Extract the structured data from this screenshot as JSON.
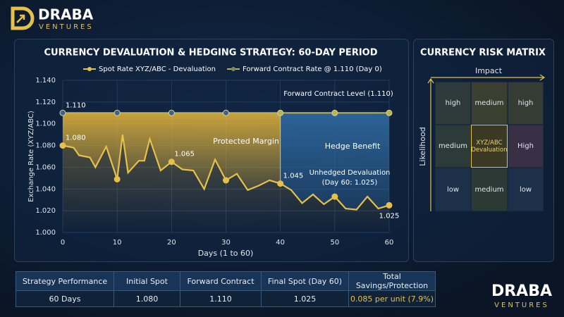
{
  "logo": {
    "name": "DRABA",
    "tagline": "VENTURES"
  },
  "chart_data": {
    "type": "line",
    "title": "CURRENCY DEVALUATION & HEDGING STRATEGY: 60-DAY PERIOD",
    "x_label": "Days (1 to 60)",
    "y_label": "Exchange Rate (XYZ/ABC)",
    "xlim": [
      0,
      60
    ],
    "xticks": [
      0,
      10,
      20,
      30,
      40,
      50,
      60
    ],
    "ylim": [
      1.0,
      1.14
    ],
    "yticks": [
      {
        "value": 1.0,
        "label": "1.000"
      },
      {
        "value": 1.02,
        "label": "1.020"
      },
      {
        "value": 1.04,
        "label": "1.040"
      },
      {
        "value": 1.06,
        "label": "1.060"
      },
      {
        "value": 1.08,
        "label": "1.080"
      },
      {
        "value": 1.1,
        "label": "1.100"
      },
      {
        "value": 1.12,
        "label": "1.120"
      },
      {
        "value": 1.14,
        "label": "1.140"
      }
    ],
    "grid": true,
    "legend": "top",
    "series": [
      {
        "name": "Spot Rate XYZ/ABC - Devaluation",
        "color": "#e6c14a",
        "x": [
          0,
          2,
          3,
          5,
          6,
          8,
          10,
          11,
          12,
          14,
          15,
          16,
          18,
          20,
          22,
          24,
          26,
          28,
          30,
          32,
          34,
          36,
          38,
          40,
          42,
          44,
          46,
          48,
          50,
          52,
          54,
          56,
          58,
          60
        ],
        "values": [
          1.08,
          1.078,
          1.071,
          1.069,
          1.06,
          1.079,
          1.049,
          1.09,
          1.055,
          1.066,
          1.066,
          1.086,
          1.057,
          1.065,
          1.058,
          1.057,
          1.04,
          1.067,
          1.048,
          1.054,
          1.039,
          1.043,
          1.048,
          1.045,
          1.039,
          1.027,
          1.035,
          1.026,
          1.033,
          1.022,
          1.021,
          1.033,
          1.022,
          1.025
        ],
        "value_labels": [
          "1.080",
          null,
          null,
          null,
          null,
          null,
          null,
          null,
          null,
          null,
          null,
          null,
          null,
          "1.065",
          null,
          null,
          null,
          null,
          null,
          null,
          null,
          null,
          null,
          "1.045",
          null,
          null,
          null,
          null,
          null,
          null,
          null,
          null,
          null,
          "1.025"
        ]
      },
      {
        "name": "Forward Contract Rate @ 1.110 (Day 0)",
        "color": "#b9b25a",
        "x": [
          0,
          10,
          20,
          30,
          40,
          50,
          60
        ],
        "values": [
          1.11,
          1.11,
          1.11,
          1.11,
          1.11,
          1.11,
          1.11
        ],
        "value_labels": [
          "1.110",
          null,
          null,
          null,
          null,
          null,
          null
        ]
      }
    ],
    "annotations": [
      "Forward Contract Level (1.110)",
      "Protected Margin",
      "Hedge Benefit",
      "Unhedged Devaluation",
      "(Day 60: 1.025)"
    ]
  },
  "risk_matrix": {
    "title": "CURRENCY RISK MATRIX",
    "x_label": "Impact",
    "y_label": "Likelihood",
    "cells": [
      [
        "high",
        "medium",
        "high"
      ],
      [
        "medium",
        "XYZ/ABC Devaluation",
        "High"
      ],
      [
        "low",
        "medium",
        "low"
      ]
    ]
  },
  "table": {
    "headers": [
      "Strategy Performance",
      "Initial Spot",
      "Forward Contract",
      "Final Spot (Day 60)",
      "Total Savings/Protection"
    ],
    "rows": [
      [
        "60 Days",
        "1.080",
        "1.110",
        "1.025",
        "0.085 per unit (7.9%)"
      ]
    ]
  }
}
